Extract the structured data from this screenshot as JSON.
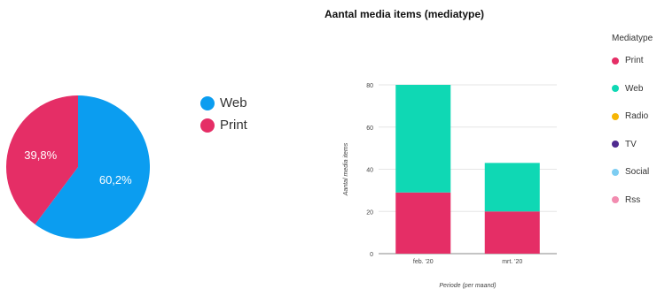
{
  "chart_data": [
    {
      "type": "pie",
      "slices": [
        {
          "label": "Web",
          "value": 60.2,
          "value_label": "60,2%",
          "color": "#0b9df0"
        },
        {
          "label": "Print",
          "value": 39.8,
          "value_label": "39,8%",
          "color": "#e52e66"
        }
      ],
      "legend": [
        "Web",
        "Print"
      ],
      "legend_position": "right"
    },
    {
      "type": "bar",
      "stacked": true,
      "title": "Aantal media items (mediatype)",
      "xlabel": "Periode (per maand)",
      "ylabel": "Aantal media items",
      "categories": [
        "feb. '20",
        "mrt. '20"
      ],
      "ylim": [
        0,
        80
      ],
      "yticks": [
        0,
        20,
        40,
        60,
        80
      ],
      "grid": true,
      "series": [
        {
          "name": "Print",
          "values": [
            29,
            20
          ],
          "color": "#e52e66"
        },
        {
          "name": "Web",
          "values": [
            51,
            23
          ],
          "color": "#0fd8b4"
        },
        {
          "name": "Radio",
          "values": [
            0,
            0
          ],
          "color": "#f6b606"
        },
        {
          "name": "TV",
          "values": [
            0,
            0
          ],
          "color": "#4f2a90"
        },
        {
          "name": "Social",
          "values": [
            0,
            0
          ],
          "color": "#7dcdf2"
        },
        {
          "name": "Rss",
          "values": [
            0,
            0
          ],
          "color": "#f28cb0"
        }
      ],
      "legend_title": "Mediatype",
      "legend_position": "right"
    }
  ]
}
